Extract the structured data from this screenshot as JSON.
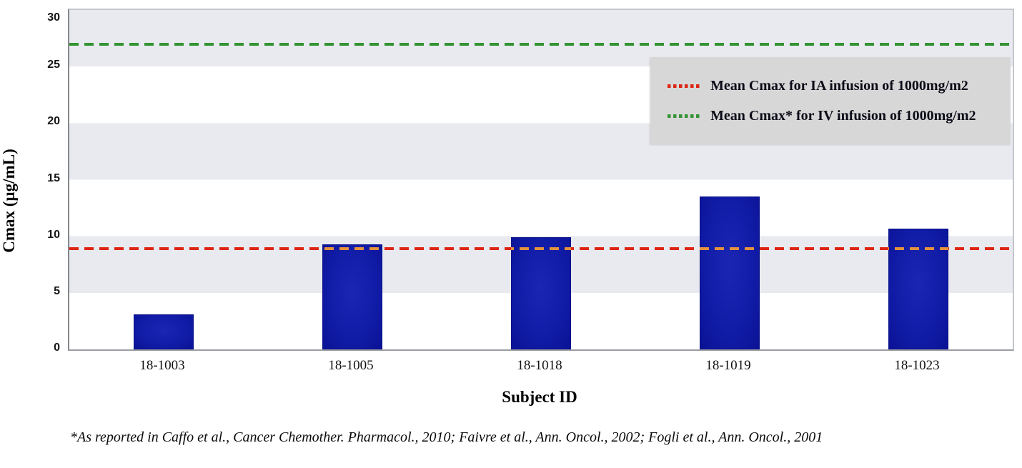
{
  "chart_data": {
    "type": "bar",
    "categories": [
      "18-1003",
      "18-1005",
      "18-1018",
      "18-1019",
      "18-1023"
    ],
    "values": [
      3.1,
      9.3,
      9.9,
      13.5,
      10.7
    ],
    "xlabel": "Subject ID",
    "ylabel": "Cmax (µg/mL)",
    "ylim": [
      0,
      30
    ],
    "ytick_step": 5,
    "yticks": [
      0,
      5,
      10,
      15,
      20,
      25,
      30
    ],
    "bar_color": "#101ca6",
    "grid": "horizontal-bands",
    "band_color": "#e8eaef",
    "legend_position": "top-right",
    "legend_background": "#d7d7d7",
    "reference_lines": [
      {
        "id": "ia",
        "label": "Mean Cmax for IA infusion of 1000mg/m2",
        "value": 8.9,
        "color": "#de2514",
        "overlay_color": "#e2913f",
        "style": "dashed"
      },
      {
        "id": "iv",
        "label": "Mean Cmax* for IV infusion of 1000mg/m2",
        "value": 27.0,
        "color": "#349434",
        "overlay_color": null,
        "style": "dashed"
      }
    ],
    "footnote": "*As reported in Caffo et al., Cancer Chemother. Pharmacol., 2010; Faivre et al., Ann. Oncol., 2002; Fogli et al., Ann. Oncol., 2001"
  }
}
